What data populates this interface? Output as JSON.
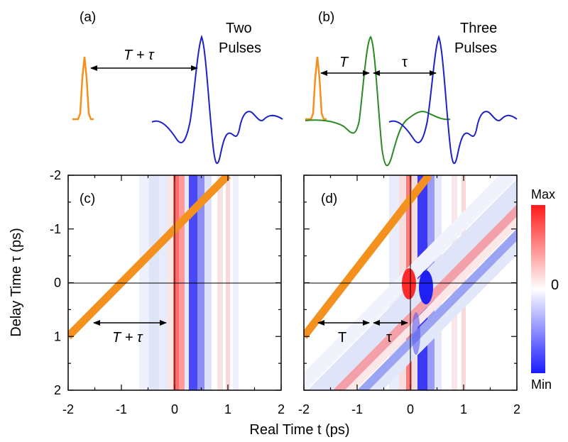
{
  "panels": {
    "a": {
      "label": "(a)",
      "title_line1": "Two",
      "title_line2": "Pulses",
      "arrow_label": "T + τ"
    },
    "b": {
      "label": "(b)",
      "title_line1": "Three",
      "title_line2": "Pulses",
      "arrow_T": "T",
      "arrow_tau": "τ"
    },
    "c": {
      "label": "(c)",
      "arrow_label": "T + τ"
    },
    "d": {
      "label": "(d)",
      "arrow_T": "T",
      "arrow_tau": "τ"
    }
  },
  "axes": {
    "xlabel": "Real Time t (ps)",
    "ylabel": "Delay Time τ (ps)"
  },
  "colorbar": {
    "max_label": "Max",
    "zero_label": "0",
    "min_label": "Min"
  },
  "colors": {
    "gate_pulse": "#f4901e",
    "pulse_blue": "#1c22c8",
    "pulse_green": "#2a8a22",
    "map_positive": "#ff1a1a",
    "map_negative": "#1a1aff"
  },
  "chart_data": [
    {
      "type": "heatmap",
      "panel": "c",
      "x_range": [
        -2,
        2
      ],
      "y_range": [
        2,
        -2
      ],
      "x_ticks": [
        -2,
        -1,
        0,
        1,
        2
      ],
      "y_ticks": [
        -2,
        -1,
        0,
        1,
        2
      ],
      "gate_line": {
        "x": [
          -2,
          1
        ],
        "y": [
          1,
          -2
        ]
      },
      "reference_lines": {
        "x": 0,
        "y": 0
      }
    },
    {
      "type": "heatmap",
      "panel": "d",
      "x_range": [
        -2,
        2
      ],
      "y_range": [
        2,
        -2
      ],
      "x_ticks": [
        -2,
        -1,
        0,
        1,
        2
      ],
      "y_ticks": [
        -2,
        -1,
        0,
        1,
        2
      ],
      "gate_line": {
        "x": [
          -2,
          0.35
        ],
        "y": [
          1,
          -2
        ]
      },
      "reference_lines": {
        "x": 0,
        "y": 0
      }
    }
  ]
}
